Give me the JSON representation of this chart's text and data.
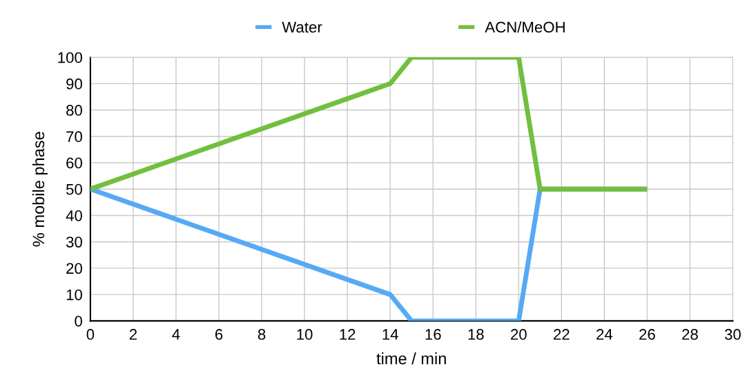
{
  "chart_data": {
    "type": "line",
    "xlabel": "time / min",
    "ylabel": "% mobile phase",
    "x": [
      0,
      14,
      15,
      20,
      21,
      26
    ],
    "series": [
      {
        "name": "Water",
        "color": "#55aaf5",
        "values": [
          50,
          10,
          0,
          0,
          50,
          50
        ]
      },
      {
        "name": "ACN/MeOH",
        "color": "#72bf3e",
        "values": [
          50,
          90,
          100,
          100,
          50,
          50
        ]
      }
    ],
    "xlim": [
      0,
      30
    ],
    "xticks": [
      0,
      2,
      4,
      6,
      8,
      10,
      12,
      14,
      16,
      18,
      20,
      22,
      24,
      26,
      28,
      30
    ],
    "ylim": [
      0,
      100
    ],
    "yticks": [
      0,
      10,
      20,
      30,
      40,
      50,
      60,
      70,
      80,
      90,
      100
    ],
    "grid": true,
    "legend": "top",
    "marker": "none",
    "line_style": "solid"
  }
}
